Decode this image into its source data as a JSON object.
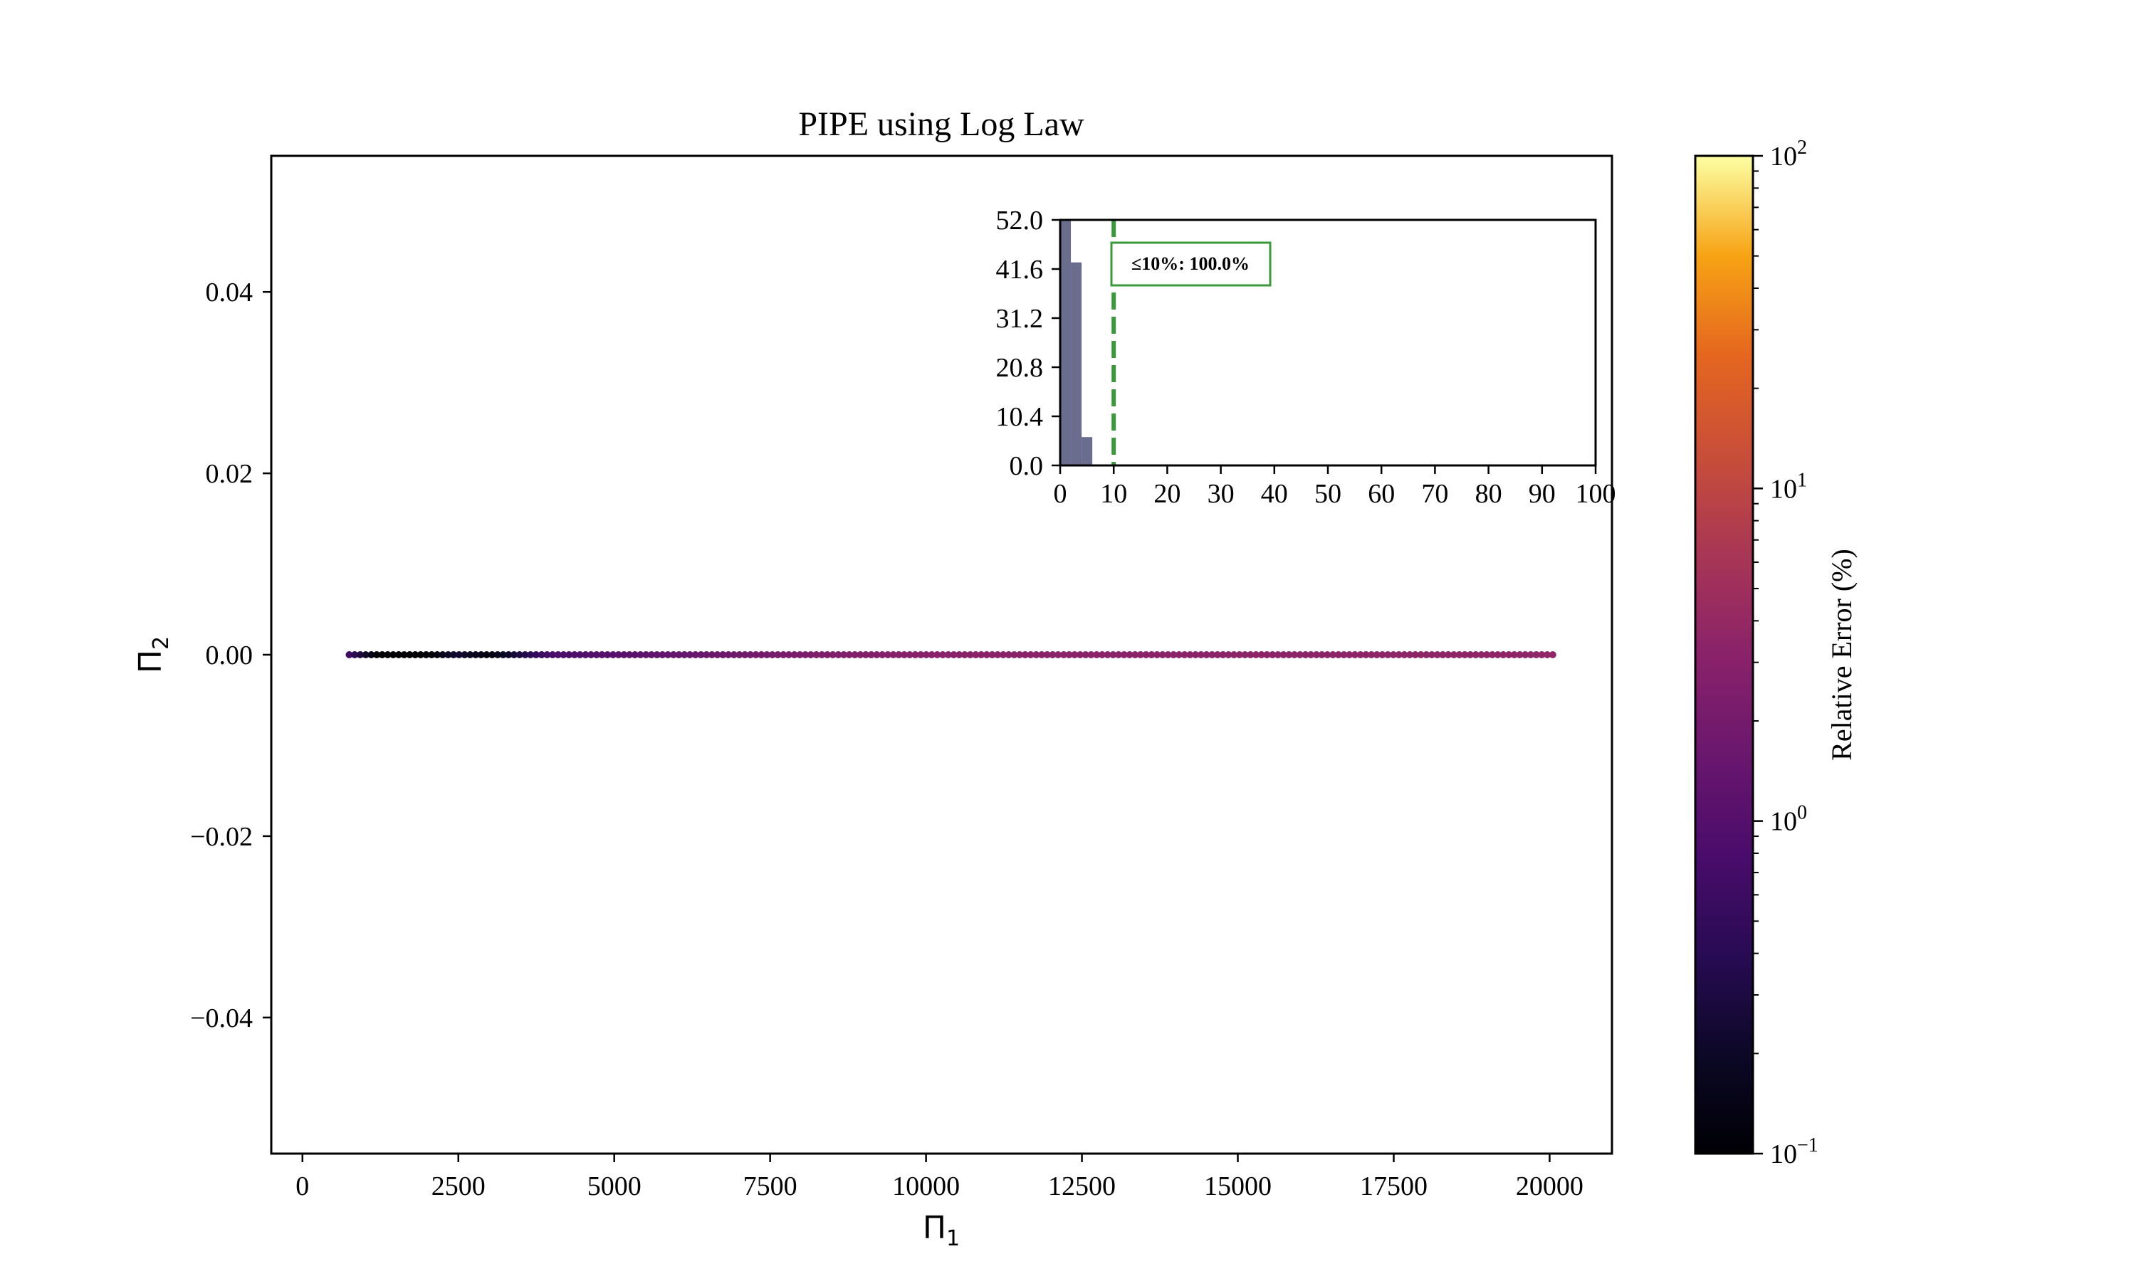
{
  "chart_data": [
    {
      "type": "scatter",
      "title": "PIPE using Log Law",
      "xlabel": "Π",
      "xlabel_sub": "1",
      "ylabel": "Π",
      "ylabel_sub": "2",
      "xlim": [
        -500,
        21000
      ],
      "ylim": [
        -0.055,
        0.055
      ],
      "xticks": [
        0,
        2500,
        5000,
        7500,
        10000,
        12500,
        15000,
        17500,
        20000
      ],
      "xtick_labels": [
        "0",
        "2500",
        "5000",
        "7500",
        "10000",
        "12500",
        "15000",
        "17500",
        "20000"
      ],
      "yticks": [
        -0.04,
        -0.02,
        0.0,
        0.02,
        0.04
      ],
      "ytick_labels": [
        "−0.04",
        "−0.02",
        "0.00",
        "0.02",
        "0.04"
      ],
      "grid": false,
      "colormap": "inferno",
      "color_scale": "log",
      "colorbar": {
        "label": "Relative Error (%)",
        "range": [
          0.1,
          100
        ],
        "ticks": [
          0.1,
          1,
          10,
          100
        ],
        "tick_labels": [
          {
            "base": "10",
            "exp": "−1"
          },
          {
            "base": "10",
            "exp": "0"
          },
          {
            "base": "10",
            "exp": "1"
          },
          {
            "base": "10",
            "exp": "2"
          }
        ]
      },
      "series": [
        {
          "x_range": [
            750,
            20050
          ],
          "y_constant": 0.0,
          "num_points": 220,
          "relative_error_profile": [
            {
              "x": 750,
              "error": 0.6
            },
            {
              "x": 1200,
              "error": 0.1
            },
            {
              "x": 2000,
              "error": 0.1
            },
            {
              "x": 2500,
              "error": 0.25
            },
            {
              "x": 3000,
              "error": 0.12
            },
            {
              "x": 4000,
              "error": 0.8
            },
            {
              "x": 6000,
              "error": 1.4
            },
            {
              "x": 8000,
              "error": 2.3
            },
            {
              "x": 10000,
              "error": 3.1
            },
            {
              "x": 20050,
              "error": 3.6
            }
          ]
        }
      ]
    },
    {
      "type": "bar",
      "title": "",
      "xlim": [
        0,
        100
      ],
      "ylim": [
        0,
        52
      ],
      "xticks": [
        0,
        10,
        20,
        30,
        40,
        50,
        60,
        70,
        80,
        90,
        100
      ],
      "xtick_labels": [
        "0",
        "10",
        "20",
        "30",
        "40",
        "50",
        "60",
        "70",
        "80",
        "90",
        "100"
      ],
      "yticks": [
        0.0,
        10.4,
        20.8,
        31.2,
        41.6,
        52.0
      ],
      "ytick_labels": [
        "0.0",
        "10.4",
        "20.8",
        "31.2",
        "41.6",
        "52.0"
      ],
      "bins": [
        {
          "start": 0,
          "end": 2,
          "count": 52
        },
        {
          "start": 2,
          "end": 4,
          "count": 43
        },
        {
          "start": 4,
          "end": 6,
          "count": 6
        }
      ],
      "bar_color": "#6b6d8f",
      "threshold_line": {
        "x": 10,
        "color": "#3a9a3a",
        "style": "dashed"
      },
      "annotation": "≤10%: 100.0%"
    }
  ]
}
